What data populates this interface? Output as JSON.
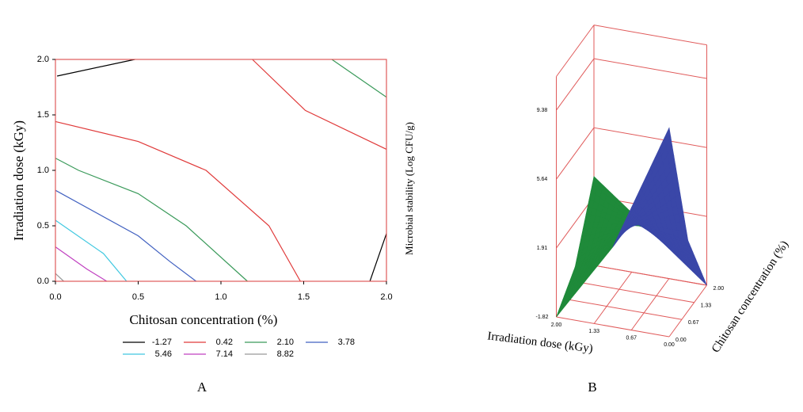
{
  "chart_data": [
    {
      "type": "contour",
      "panel_label": "A",
      "xlabel": "Chitosan concentration (%)",
      "ylabel": "Irradiation dose (kGy)",
      "xlim": [
        0,
        2
      ],
      "ylim": [
        0,
        2
      ],
      "xticks": [
        {
          "value": 0,
          "label": "0.0"
        },
        {
          "value": 0.5,
          "label": "0.5"
        },
        {
          "value": 1,
          "label": "1.0"
        },
        {
          "value": 1.5,
          "label": "1.5"
        },
        {
          "value": 2,
          "label": "2.0"
        }
      ],
      "yticks": [
        {
          "value": 0,
          "label": "0.0"
        },
        {
          "value": 0.5,
          "label": "0.5"
        },
        {
          "value": 1,
          "label": "1.0"
        },
        {
          "value": 1.5,
          "label": "1.5"
        },
        {
          "value": 2,
          "label": "2.0"
        }
      ],
      "frame_color": "#e05a5a",
      "series": [
        {
          "name": "-1.27",
          "color": "#000000",
          "x": [
            0.01,
            0.48,
            null,
            1.9,
            2.0
          ],
          "y": [
            1.85,
            2.0,
            null,
            0,
            0.43
          ]
        },
        {
          "name": "0.42",
          "color": "#e03a3a",
          "x": [
            1.19,
            1.51,
            2.0,
            null,
            0,
            0.5,
            0.91,
            1.29,
            1.48
          ],
          "y": [
            2.0,
            1.54,
            1.19,
            null,
            1.44,
            1.26,
            1.0,
            0.5,
            0
          ]
        },
        {
          "name": "2.10",
          "color": "#3a9a5a",
          "x": [
            1.67,
            2.0,
            null,
            0,
            0.14,
            0.5,
            0.79,
            1.16
          ],
          "y": [
            2.0,
            1.66,
            null,
            1.11,
            1.0,
            0.79,
            0.5,
            0
          ]
        },
        {
          "name": "3.78",
          "color": "#4060c0",
          "x": [
            0,
            0.5,
            0.69,
            0.85
          ],
          "y": [
            0.82,
            0.41,
            0.18,
            0
          ]
        },
        {
          "name": "5.46",
          "color": "#40c8e0",
          "x": [
            0,
            0.29,
            0.43
          ],
          "y": [
            0.55,
            0.25,
            0
          ]
        },
        {
          "name": "7.14",
          "color": "#c040c0",
          "x": [
            0,
            0.19,
            0.31
          ],
          "y": [
            0.31,
            0.11,
            0
          ]
        },
        {
          "name": "8.82",
          "color": "#999999",
          "x": [
            0,
            0.05
          ],
          "y": [
            0.07,
            0
          ]
        }
      ]
    },
    {
      "type": "surface3d",
      "panel_label": "B",
      "xlabel": "Irradiation dose (kGy)",
      "ylabel": "Chitosan concentration (%)",
      "zlabel": "Microbial stability (Log CFU/g)",
      "xlim": [
        0,
        2
      ],
      "ylim": [
        0,
        2
      ],
      "zlim": [
        -1.82,
        11.2
      ],
      "xticks": [
        {
          "value": 2,
          "label": "2.00"
        },
        {
          "value": 1.33,
          "label": "1.33"
        },
        {
          "value": 0.67,
          "label": "0.67"
        },
        {
          "value": 0,
          "label": "0.00"
        }
      ],
      "yticks": [
        {
          "value": 0,
          "label": "0.00"
        },
        {
          "value": 0.67,
          "label": "0.67"
        },
        {
          "value": 1.33,
          "label": "1.33"
        },
        {
          "value": 2,
          "label": "2.00"
        }
      ],
      "zticks": [
        -1.82,
        1.91,
        5.64,
        9.38
      ],
      "x": [
        0,
        1,
        2
      ],
      "y": [
        0,
        1,
        2
      ],
      "z": [
        [
          9.5,
          2.0,
          -1.82
        ],
        [
          2.5,
          2.5,
          0.6
        ],
        [
          -1.82,
          -0.5,
          3.0
        ]
      ],
      "colors": [
        "#3a47a8",
        "#1f8a3a"
      ],
      "box_color": "#e05a5a"
    }
  ]
}
